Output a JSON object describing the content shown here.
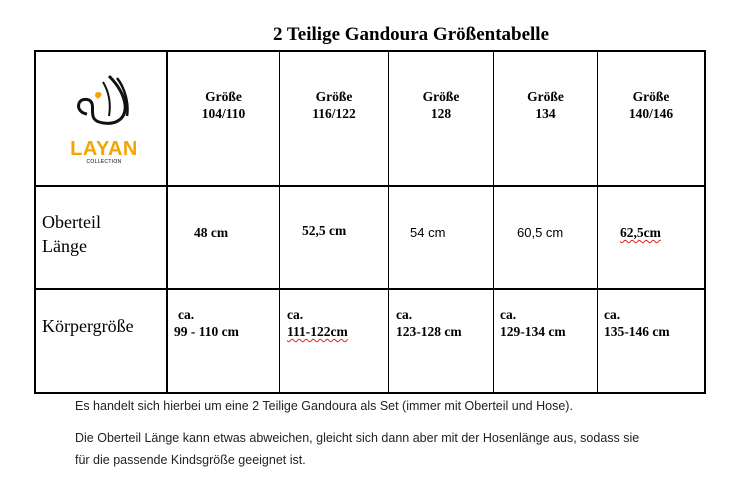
{
  "title": "2 Teilige Gandoura Größentabelle",
  "logo": {
    "word": "LAYAN",
    "sub": "COLLECTION",
    "accent": "#f5a400"
  },
  "columns": [
    {
      "label": "Größe",
      "size": "104/110"
    },
    {
      "label": "Größe",
      "size": "116/122"
    },
    {
      "label": "Größe",
      "size": "128"
    },
    {
      "label": "Größe",
      "size": "134"
    },
    {
      "label": "Größe",
      "size": "140/146"
    }
  ],
  "rows": [
    {
      "label_line1": "Oberteil",
      "label_line2": "Länge",
      "values": [
        "48 cm",
        "52,5 cm",
        "54 cm",
        "60,5 cm",
        "62,5cm"
      ]
    },
    {
      "label_line1": "Körpergröße",
      "prefix": "ca.",
      "values": [
        "99 - 110 cm",
        "111-122cm",
        "123-128 cm",
        "129-134 cm",
        "135-146 cm"
      ]
    }
  ],
  "notes": [
    "Es handelt sich hierbei um eine 2 Teilige Gandoura als Set (immer mit Oberteil und Hose).",
    "Die Oberteil Länge kann etwas abweichen, gleicht sich dann aber mit der Hosenlänge aus, sodass sie",
    "für die passende Kindsgröße geeignet ist."
  ]
}
